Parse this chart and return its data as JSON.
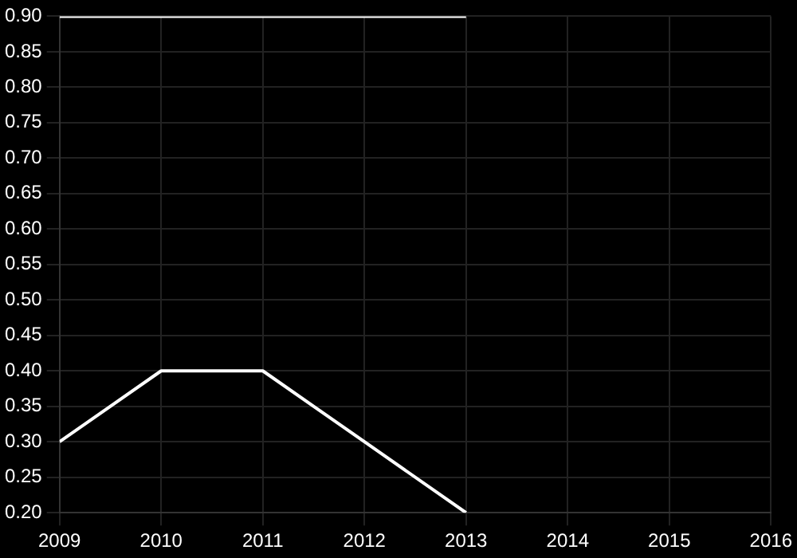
{
  "chart_data": {
    "type": "line",
    "x": [
      2009,
      2010,
      2011,
      2012,
      2013
    ],
    "series": [
      {
        "color": "#ffffff",
        "values": [
          0.9,
          0.9,
          0.9,
          0.9,
          0.9
        ]
      },
      {
        "color": "#ffffff",
        "values": [
          0.3,
          0.4,
          0.4,
          0.3,
          0.2
        ]
      }
    ],
    "xlim": [
      2009,
      2016
    ],
    "xticks": [
      2009,
      2010,
      2011,
      2012,
      2013,
      2014,
      2015,
      2016
    ],
    "ylim": [
      0.2,
      0.9
    ],
    "yticks": [
      {
        "value": 0.2,
        "label": "0.20"
      },
      0.25,
      {
        "value": 0.3,
        "label": "0.30"
      },
      0.35,
      {
        "value": 0.4,
        "label": "0.40"
      },
      0.45,
      {
        "value": 0.5,
        "label": "0.50"
      },
      0.55,
      {
        "value": 0.6,
        "label": "0.60"
      },
      0.65,
      {
        "value": 0.7,
        "label": "0.70"
      },
      0.75,
      {
        "value": 0.8,
        "label": "0.80"
      },
      0.85,
      {
        "value": 0.9,
        "label": "0.90"
      }
    ],
    "grid": true,
    "legend": false,
    "marker": "none"
  }
}
